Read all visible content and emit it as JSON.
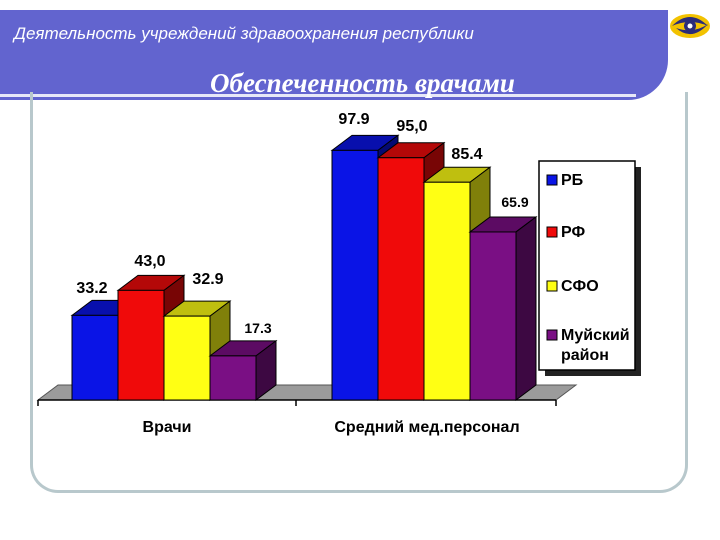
{
  "header": {
    "title": "Деятельность учреждений здравоохранения республики",
    "subtitle": "Обеспеченность врачами"
  },
  "logo": {
    "icon": "eye-swirl-logo-icon",
    "colors": [
      "#f2c200",
      "#2b2c7a"
    ]
  },
  "colors": {
    "header_band": "#6264cf"
  },
  "chart_data": {
    "type": "bar",
    "categories": [
      "Врачи",
      "Средний мед.персонал"
    ],
    "series": [
      {
        "name": "РБ",
        "values": [
          33.2,
          97.9
        ],
        "labels": [
          "33.2",
          "97.9"
        ],
        "color": "#0a14e6"
      },
      {
        "name": "РФ",
        "values": [
          43.0,
          95.0
        ],
        "labels": [
          "43,0",
          "95,0"
        ],
        "color": "#f00a0a"
      },
      {
        "name": "СФО",
        "values": [
          32.9,
          85.4
        ],
        "labels": [
          "32.9",
          "85.4"
        ],
        "color": "#ffff14"
      },
      {
        "name": "Муйский район",
        "values": [
          17.3,
          65.9
        ],
        "labels": [
          "17.3",
          "65.9"
        ],
        "color": "#7a0f84"
      }
    ],
    "legend_labels": [
      "РБ",
      "РФ",
      "СФО",
      "Муйский\nрайон"
    ],
    "legend_position": "right",
    "style": "3d",
    "ylim": [
      0,
      100
    ],
    "grid": false
  }
}
